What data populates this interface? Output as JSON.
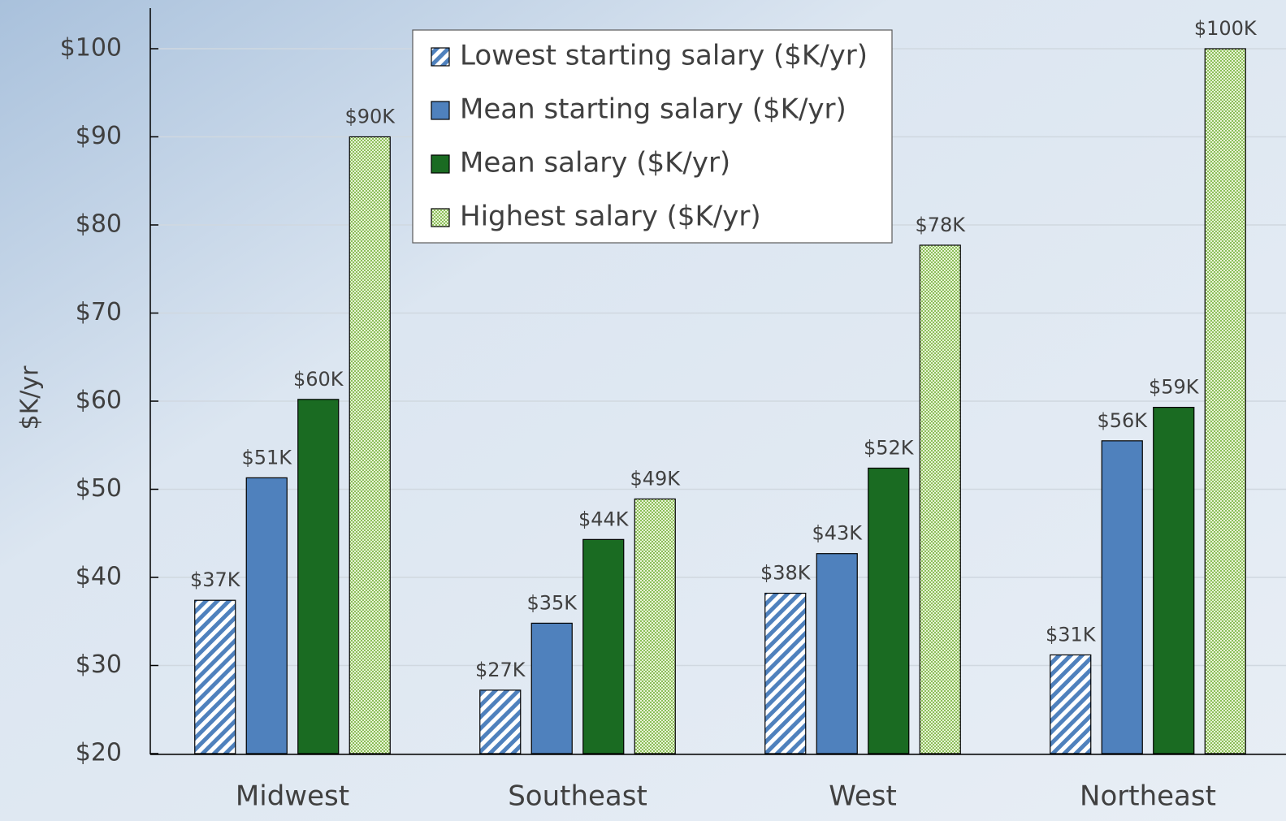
{
  "chart_data": {
    "type": "bar",
    "y_label": "$K/yr",
    "categories": [
      "Midwest",
      "Southeast",
      "West",
      "Northeast"
    ],
    "series": [
      {
        "name": "Lowest starting salary ($K/yr)",
        "color": "#4f81bd",
        "pattern": "hatch",
        "values": [
          37.4,
          27.2,
          38.2,
          31.2
        ],
        "value_labels": [
          "$37K",
          "$27K",
          "$38K",
          "$31K"
        ]
      },
      {
        "name": "Mean starting salary ($K/yr)",
        "color": "#4f81bd",
        "pattern": "solid",
        "values": [
          51.3,
          34.8,
          42.7,
          55.5
        ],
        "value_labels": [
          "$51K",
          "$35K",
          "$43K",
          "$56K"
        ]
      },
      {
        "name": "Mean salary ($K/yr)",
        "color": "#1a6b22",
        "pattern": "solid",
        "values": [
          60.2,
          44.3,
          52.4,
          59.3
        ],
        "value_labels": [
          "$60K",
          "$44K",
          "$52K",
          "$59K"
        ]
      },
      {
        "name": "Highest salary ($K/yr)",
        "color": "#8cbf5a",
        "pattern": "check",
        "values": [
          90,
          48.9,
          77.7,
          100
        ],
        "value_labels": [
          "$90K",
          "$49K",
          "$78K",
          "$100K"
        ]
      }
    ],
    "ylim": [
      20,
      100
    ],
    "yticks": [
      {
        "value": 20,
        "label": "$20"
      },
      {
        "value": 30,
        "label": "$30"
      },
      {
        "value": 40,
        "label": "$40"
      },
      {
        "value": 50,
        "label": "$50"
      },
      {
        "value": 60,
        "label": "$60"
      },
      {
        "value": 70,
        "label": "$70"
      },
      {
        "value": 80,
        "label": "$80"
      },
      {
        "value": 90,
        "label": "$90"
      },
      {
        "value": 100,
        "label": "$100"
      }
    ],
    "grid": true,
    "legend": "top"
  }
}
